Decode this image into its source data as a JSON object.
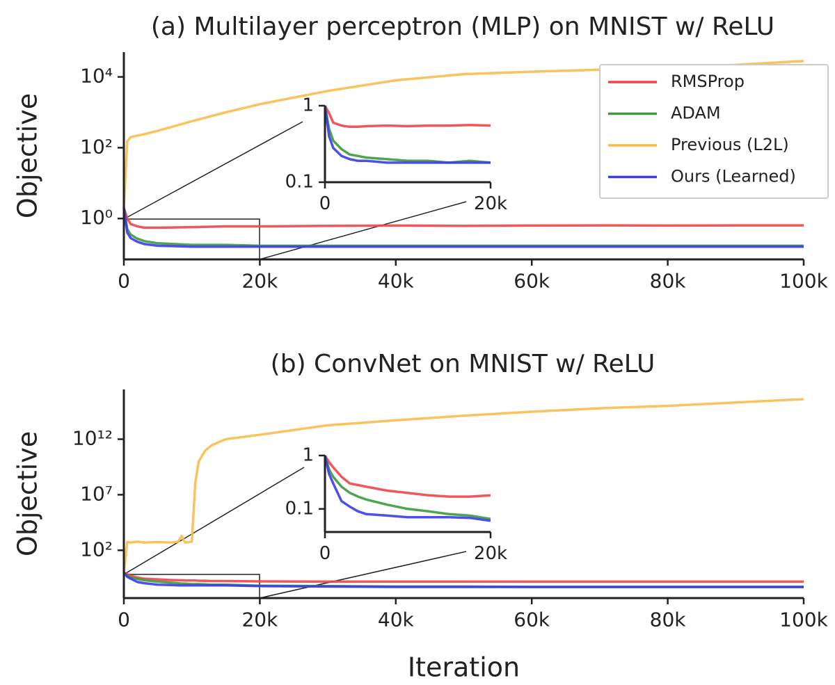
{
  "chart_data": [
    {
      "type": "line",
      "title": "(a) Multilayer perceptron (MLP) on MNIST w/ ReLU",
      "ylabel": "Objective",
      "yscale": "log",
      "legend": "upper right",
      "x": [
        0,
        500,
        1000,
        2000,
        3000,
        5000,
        10000,
        15000,
        20000,
        30000,
        40000,
        50000,
        60000,
        70000,
        80000,
        90000,
        100000
      ],
      "xlim": [
        0,
        100000
      ],
      "ylim": [
        0.07,
        50000
      ],
      "xticks": [
        0,
        {
          "value": 20000,
          "label": "20k"
        },
        {
          "value": 40000,
          "label": "40k"
        },
        {
          "value": 60000,
          "label": "60k"
        },
        {
          "value": 80000,
          "label": "80k"
        },
        {
          "value": 100000,
          "label": "100k"
        }
      ],
      "yticks": [
        {
          "value": 1,
          "label": "10⁰"
        },
        {
          "value": 100,
          "label": "10²"
        },
        {
          "value": 10000,
          "label": "10⁴"
        }
      ],
      "series": [
        {
          "name": "RMSProp",
          "color": "#f04448",
          "values": [
            2,
            1.0,
            0.7,
            0.6,
            0.55,
            0.55,
            0.57,
            0.6,
            0.6,
            0.62,
            0.63,
            0.62,
            0.63,
            0.64,
            0.63,
            0.64,
            0.64
          ]
        },
        {
          "name": "ADAM",
          "color": "#3c9a3c",
          "values": [
            2,
            0.5,
            0.35,
            0.27,
            0.23,
            0.2,
            0.18,
            0.18,
            0.17,
            0.17,
            0.17,
            0.17,
            0.17,
            0.17,
            0.17,
            0.17,
            0.17
          ]
        },
        {
          "name": "Previous (L2L)",
          "color": "#f8bc4c",
          "values": [
            2,
            150,
            200,
            220,
            240,
            300,
            560,
            1000,
            1700,
            4000,
            8000,
            12000,
            14000,
            16000,
            19000,
            22000,
            28000
          ]
        },
        {
          "name": "Ours (Learned)",
          "color": "#3c3ce8",
          "values": [
            2,
            0.4,
            0.28,
            0.22,
            0.19,
            0.17,
            0.16,
            0.16,
            0.16,
            0.16,
            0.16,
            0.16,
            0.16,
            0.16,
            0.16,
            0.16,
            0.16
          ]
        }
      ]
    },
    {
      "type": "line",
      "yscale": "log",
      "x": [
        0,
        500,
        1000,
        2000,
        3000,
        4000,
        5000,
        7500,
        10000,
        12500,
        15000,
        17500,
        20000
      ],
      "xlim": [
        0,
        20000
      ],
      "ylim": [
        0.1,
        1
      ],
      "xticks": [
        0,
        {
          "value": 20000,
          "label": "20k"
        }
      ],
      "yticks": [
        0.1,
        1
      ],
      "series": [
        {
          "color": "#f04448",
          "values": [
            1,
            0.8,
            0.6,
            0.55,
            0.53,
            0.53,
            0.54,
            0.55,
            0.54,
            0.55,
            0.55,
            0.56,
            0.55
          ]
        },
        {
          "color": "#3c9a3c",
          "values": [
            1,
            0.5,
            0.35,
            0.27,
            0.23,
            0.22,
            0.21,
            0.2,
            0.19,
            0.19,
            0.18,
            0.19,
            0.18
          ]
        },
        {
          "color": "#3c3ce8",
          "values": [
            1,
            0.4,
            0.28,
            0.22,
            0.2,
            0.19,
            0.19,
            0.18,
            0.18,
            0.18,
            0.18,
            0.18,
            0.18
          ]
        }
      ]
    },
    {
      "type": "line",
      "title": "(b) ConvNet on MNIST w/ ReLU",
      "ylabel": "Objective",
      "xlabel": "Iteration",
      "yscale": "log",
      "x": [
        0,
        500,
        1000,
        2000,
        3000,
        5000,
        7000,
        8000,
        8500,
        9000,
        10000,
        10500,
        11000,
        12000,
        13000,
        15000,
        20000,
        30000,
        40000,
        50000,
        60000,
        70000,
        80000,
        90000,
        100000
      ],
      "xlim": [
        0,
        100000
      ],
      "ylim": [
        0.005,
        3e+16
      ],
      "xticks": [
        0,
        {
          "value": 20000,
          "label": "20k"
        },
        {
          "value": 40000,
          "label": "40k"
        },
        {
          "value": 60000,
          "label": "60k"
        },
        {
          "value": 80000,
          "label": "80k"
        },
        {
          "value": 100000,
          "label": "100k"
        }
      ],
      "yticks": [
        {
          "value": 100,
          "label": "10²"
        },
        {
          "value": 10000000,
          "label": "10⁷"
        },
        {
          "value": 1000000000000,
          "label": "10¹²"
        }
      ],
      "series": [
        {
          "color": "#f04448",
          "values": [
            1,
            0.7,
            0.5,
            0.35,
            0.28,
            0.24,
            0.21,
            0.2,
            0.2,
            0.19,
            0.19,
            0.19,
            0.18,
            0.18,
            0.17,
            0.17,
            0.16,
            0.15,
            0.15,
            0.15,
            0.15,
            0.15,
            0.15,
            0.15,
            0.15
          ]
        },
        {
          "color": "#3c9a3c",
          "values": [
            1,
            0.5,
            0.35,
            0.26,
            0.2,
            0.15,
            0.12,
            0.11,
            0.1,
            0.1,
            0.09,
            0.09,
            0.09,
            0.085,
            0.08,
            0.08,
            0.065,
            0.06,
            0.055,
            0.055,
            0.05,
            0.05,
            0.05,
            0.05,
            0.05
          ]
        },
        {
          "color": "#f8bc4c",
          "values": [
            1,
            560,
            500,
            600,
            500,
            550,
            500,
            600,
            2000,
            500,
            600,
            100000000.0,
            10000000000.0,
            100000000000.0,
            300000000000.0,
            1000000000000.0,
            2500000000000.0,
            18000000000000.0,
            50000000000000.0,
            130000000000000.0,
            300000000000000.0,
            600000000000000.0,
            1000000000000000.0,
            2000000000000000.0,
            4000000000000000.0
          ]
        },
        {
          "color": "#3c3ce8",
          "values": [
            1,
            0.4,
            0.28,
            0.14,
            0.11,
            0.08,
            0.075,
            0.07,
            0.07,
            0.07,
            0.07,
            0.07,
            0.07,
            0.07,
            0.07,
            0.07,
            0.06,
            0.055,
            0.05,
            0.05,
            0.05,
            0.05,
            0.05,
            0.05,
            0.05
          ]
        }
      ]
    },
    {
      "type": "line",
      "yscale": "log",
      "x": [
        0,
        500,
        1000,
        2000,
        3000,
        4000,
        5000,
        7500,
        10000,
        12500,
        15000,
        17500,
        20000
      ],
      "xlim": [
        0,
        20000
      ],
      "ylim": [
        0.037,
        1
      ],
      "xticks": [
        0,
        {
          "value": 20000,
          "label": "20k"
        }
      ],
      "yticks": [
        0.1,
        1
      ],
      "series": [
        {
          "color": "#f04448",
          "values": [
            1,
            0.75,
            0.6,
            0.4,
            0.3,
            0.28,
            0.26,
            0.22,
            0.2,
            0.18,
            0.17,
            0.17,
            0.18
          ]
        },
        {
          "color": "#3c9a3c",
          "values": [
            1,
            0.55,
            0.4,
            0.26,
            0.2,
            0.17,
            0.15,
            0.12,
            0.1,
            0.09,
            0.08,
            0.075,
            0.065
          ]
        },
        {
          "color": "#3c3ce8",
          "values": [
            1,
            0.45,
            0.3,
            0.14,
            0.11,
            0.09,
            0.08,
            0.075,
            0.07,
            0.07,
            0.07,
            0.068,
            0.06
          ]
        }
      ]
    }
  ]
}
